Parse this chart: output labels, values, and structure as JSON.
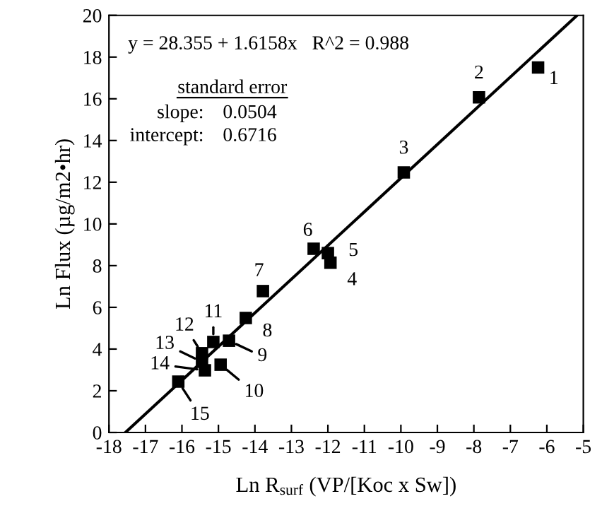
{
  "chart_data": {
    "type": "scatter",
    "xlabel": "Ln R$_{surf}$ (VP/[Koc x Sw])",
    "ylabel": "Ln Flux (µg/m2•hr)",
    "xlim": [
      -18,
      -5
    ],
    "ylim": [
      0,
      20
    ],
    "xticks": [
      -18,
      -17,
      -16,
      -15,
      -14,
      -13,
      -12,
      -11,
      -10,
      -9,
      -8,
      -7,
      -6,
      -5
    ],
    "yticks": [
      0,
      2,
      4,
      6,
      8,
      10,
      12,
      14,
      16,
      18,
      20
    ],
    "grid": false,
    "legend": false,
    "series": [
      {
        "marker": "square",
        "color": "#000000",
        "x": [
          -6.24,
          -7.86,
          -9.92,
          -11.93,
          -12.0,
          -12.39,
          -13.78,
          -14.25,
          -14.71,
          -14.94,
          -15.14,
          -15.45,
          -15.45,
          -15.37,
          -16.1
        ],
        "values": [
          17.5,
          16.07,
          12.47,
          8.14,
          8.6,
          8.81,
          6.78,
          5.49,
          4.4,
          3.25,
          4.34,
          3.8,
          3.39,
          2.98,
          2.44
        ]
      },
      {
        "type": "line",
        "color": "#000000",
        "x": [
          -17.55,
          -5.17
        ],
        "values": [
          0,
          20
        ],
        "line_style": "solid",
        "marker": "none"
      }
    ],
    "annotations": [
      "y = 28.355 + 1.6158x   R^2 = 0.988",
      "standard error",
      "slope:",
      "0.0504",
      "intercept:",
      "0.6716",
      {
        "text": "1",
        "x": -6.24,
        "y": 17.5
      },
      {
        "text": "2",
        "x": -7.86,
        "y": 16.07
      },
      {
        "text": "3",
        "x": -9.92,
        "y": 12.47
      },
      {
        "text": "4",
        "x": -11.93,
        "y": 8.14
      },
      {
        "text": "5",
        "x": -12.0,
        "y": 8.6
      },
      {
        "text": "6",
        "x": -12.39,
        "y": 8.81
      },
      {
        "text": "7",
        "x": -13.78,
        "y": 6.78
      },
      {
        "text": "8",
        "x": -14.25,
        "y": 5.49
      },
      {
        "text": "9",
        "x": -14.71,
        "y": 4.4
      },
      {
        "text": "10",
        "x": -14.94,
        "y": 3.25
      },
      {
        "text": "11",
        "x": -15.14,
        "y": 4.34
      },
      {
        "text": "12",
        "x": -15.45,
        "y": 3.8
      },
      {
        "text": "13",
        "x": -15.45,
        "y": 3.39
      },
      {
        "text": "14",
        "x": -15.37,
        "y": 2.98
      },
      {
        "text": "15",
        "x": -16.1,
        "y": 2.44
      }
    ]
  }
}
